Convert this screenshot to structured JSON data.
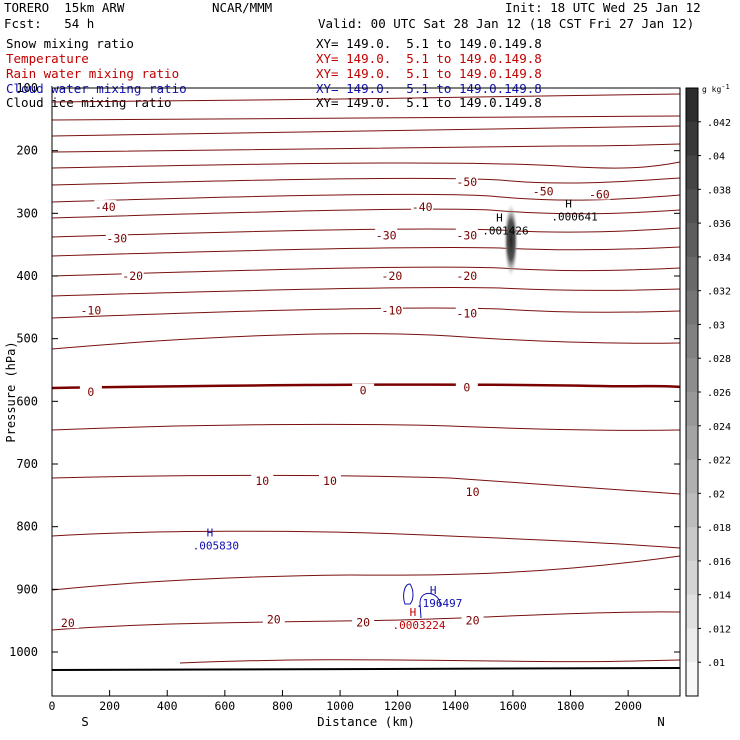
{
  "header": {
    "model": "TORERO  15km ARW",
    "org": "NCAR/MMM",
    "init": "Init: 18 UTC Wed 25 Jan 12",
    "fcst": "Fcst:   54 h",
    "valid": "Valid: 00 UTC Sat 28 Jan 12 (18 CST Fri 27 Jan 12)"
  },
  "legend": [
    {
      "label": "Snow mixing ratio",
      "xy": "XY= 149.0.  5.1 to 149.0.149.8",
      "color": "#000000"
    },
    {
      "label": "Temperature",
      "xy": "XY= 149.0.  5.1 to 149.0.149.8",
      "color": "#c00000"
    },
    {
      "label": "Rain water mixing ratio",
      "xy": "XY= 149.0.  5.1 to 149.0.149.8",
      "color": "#c00000"
    },
    {
      "label": "Cloud water mixing ratio",
      "xy": "XY= 149.0.  5.1 to 149.0.149.8",
      "color": "#1010b0"
    },
    {
      "label": "Cloud ice mixing ratio",
      "xy": "XY= 149.0.  5.1 to 149.0.149.8",
      "color": "#000000"
    }
  ],
  "chart_data": {
    "type": "cross-section contour",
    "xlabel": "Distance (km)",
    "ylabel": "Pressure (hPa)",
    "xlim": [
      0,
      2180
    ],
    "ylim": [
      1050,
      100
    ],
    "x_ticks": [
      "0",
      "200",
      "400",
      "600",
      "800",
      "1000",
      "1200",
      "1400",
      "1600",
      "1800",
      "2000"
    ],
    "y_ticks": [
      "100",
      "200",
      "300",
      "400",
      "500",
      "600",
      "700",
      "800",
      "900",
      "1000"
    ],
    "x_end_labels": {
      "left": "S",
      "right": "N"
    },
    "temperature_labels": [
      {
        "text": "-60",
        "x": 1900,
        "p": 270
      },
      {
        "text": "-50",
        "x": 1440,
        "p": 250
      },
      {
        "text": "-50",
        "x": 1705,
        "p": 265
      },
      {
        "text": "-40",
        "x": 185,
        "p": 290
      },
      {
        "text": "-40",
        "x": 1285,
        "p": 290
      },
      {
        "text": "-30",
        "x": 225,
        "p": 340
      },
      {
        "text": "-30",
        "x": 1160,
        "p": 335
      },
      {
        "text": "-30",
        "x": 1440,
        "p": 335
      },
      {
        "text": "-20",
        "x": 280,
        "p": 400
      },
      {
        "text": "-20",
        "x": 1180,
        "p": 400
      },
      {
        "text": "-20",
        "x": 1440,
        "p": 400
      },
      {
        "text": "-10",
        "x": 135,
        "p": 455
      },
      {
        "text": "-10",
        "x": 1180,
        "p": 455
      },
      {
        "text": "-10",
        "x": 1440,
        "p": 460
      },
      {
        "text": "0",
        "x": 135,
        "p": 585
      },
      {
        "text": "0",
        "x": 1080,
        "p": 583
      },
      {
        "text": "0",
        "x": 1440,
        "p": 578
      },
      {
        "text": "10",
        "x": 730,
        "p": 727
      },
      {
        "text": "10",
        "x": 965,
        "p": 727
      },
      {
        "text": "10",
        "x": 1460,
        "p": 745
      },
      {
        "text": "20",
        "x": 55,
        "p": 954
      },
      {
        "text": "20",
        "x": 770,
        "p": 948
      },
      {
        "text": "20",
        "x": 1080,
        "p": 953
      },
      {
        "text": "20",
        "x": 1460,
        "p": 950
      }
    ],
    "maxima": [
      {
        "mark": "H",
        "value": ".000641",
        "x": 1800,
        "p": 305,
        "series": "Snow mixing ratio"
      },
      {
        "mark": "H",
        "value": ".001426",
        "x": 1560,
        "p": 327,
        "series": "Cloud ice mixing ratio"
      },
      {
        "mark": "H",
        "value": ".005830",
        "x": 555,
        "p": 830,
        "series": "Cloud water mixing ratio"
      },
      {
        "mark": "H",
        "value": ".196497",
        "x": 1330,
        "p": 922,
        "series": "Cloud water mixing ratio"
      },
      {
        "mark": "H",
        "value": ".0003224",
        "x": 1260,
        "p": 957,
        "series": "Rain water mixing ratio"
      }
    ],
    "colorbar": {
      "unit": "g kg",
      "unit_exp": "-1",
      "ticks": [
        ".042",
        ".04",
        ".038",
        ".036",
        ".034",
        ".032",
        ".03",
        ".028",
        ".026",
        ".024",
        ".022",
        ".02",
        ".018",
        ".016",
        ".014",
        ".012",
        ".01"
      ]
    }
  }
}
